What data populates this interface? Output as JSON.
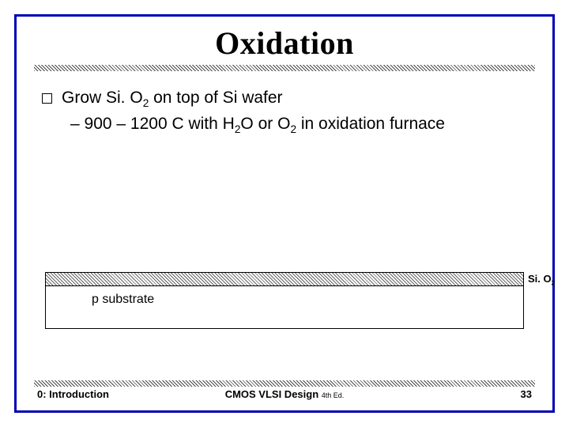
{
  "title": "Oxidation",
  "bullet": {
    "checkbox": "❏",
    "text_html": "Grow Si. O<sub>2</sub> on top of Si wafer"
  },
  "subbullet": {
    "dash": "–",
    "text_html": "900 – 1200 C with H<sub>2</sub>O or O<sub>2</sub> in oxidation furnace"
  },
  "diagram": {
    "sio2_label_html": "Si. O<sub>2</sub>",
    "substrate_label": "p substrate"
  },
  "footer": {
    "left": "0: Introduction",
    "center": "CMOS VLSI Design",
    "edition": "4th Ed.",
    "pagenum": "33"
  },
  "colors": {
    "border": "#0000b4",
    "hatch": "#4a4a4a",
    "text": "#000000"
  }
}
